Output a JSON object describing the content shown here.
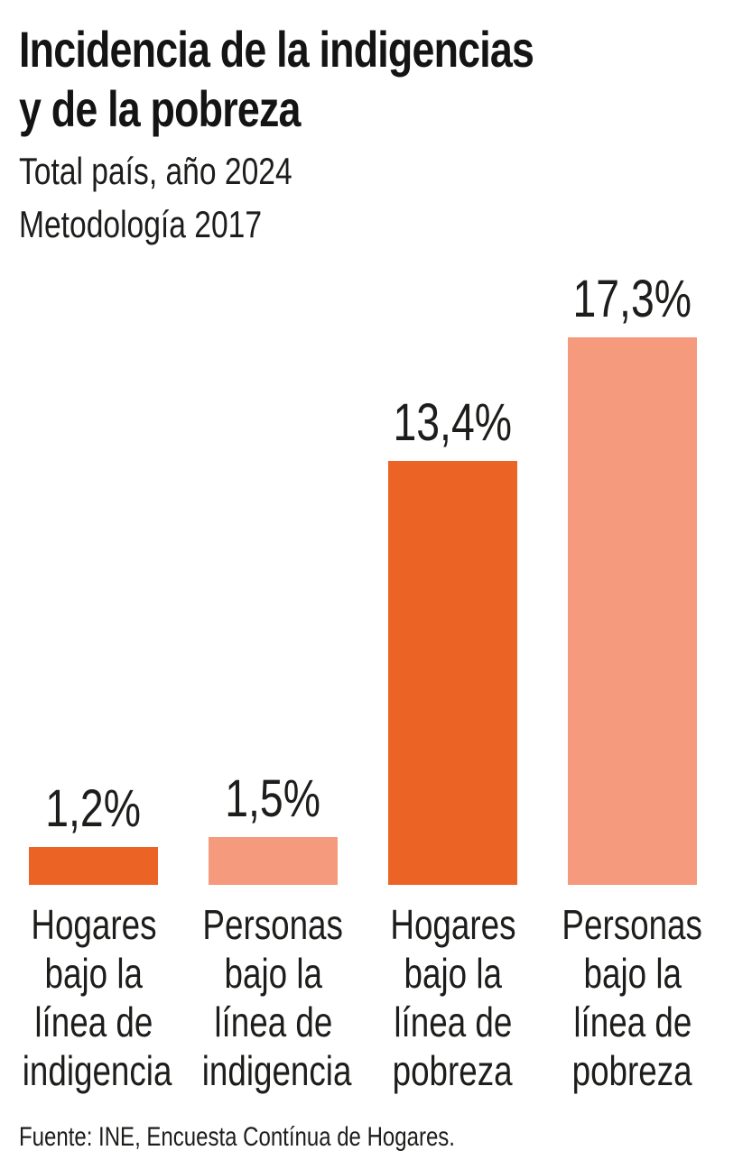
{
  "header": {
    "title_line1": "Incidencia de la indigencias",
    "title_line2": "y de la pobreza",
    "subtitle_line1": "Total país, año 2024",
    "subtitle_line2": "Metodología 2017"
  },
  "chart_data": {
    "type": "bar",
    "title": "Incidencia de la indigencias y de la pobreza",
    "subtitle": [
      "Total país, año 2024",
      "Metodología 2017"
    ],
    "unit": "%",
    "ylim": [
      0,
      18
    ],
    "grid": false,
    "legend": null,
    "categories": [
      "Hogares bajo la línea de indigencia",
      "Personas bajo la línea de indigencia",
      "Hogares bajo la línea de pobreza",
      "Personas bajo la línea de pobreza"
    ],
    "values": [
      1.2,
      1.5,
      13.4,
      17.3
    ],
    "bars": [
      {
        "category_lines": [
          "Hogares",
          "bajo la",
          "línea de",
          "indigencia"
        ],
        "value": 1.2,
        "value_label": "1,2%",
        "color": "#EC6425"
      },
      {
        "category_lines": [
          "Personas",
          "bajo la",
          "línea de",
          "indigencia"
        ],
        "value": 1.5,
        "value_label": "1,5%",
        "color": "#F59A7C"
      },
      {
        "category_lines": [
          "Hogares",
          "bajo la",
          "línea de",
          "pobreza"
        ],
        "value": 13.4,
        "value_label": "13,4%",
        "color": "#EC6425"
      },
      {
        "category_lines": [
          "Personas",
          "bajo la",
          "línea de",
          "pobreza"
        ],
        "value": 17.3,
        "value_label": "17,3%",
        "color": "#F59A7C"
      }
    ],
    "colors": {
      "bar_dark_orange": "#EC6425",
      "bar_light_salmon": "#F59A7C",
      "text": "#1D1D1B"
    }
  },
  "footer": {
    "source": "Fuente: INE, Encuesta Contínua de Hogares."
  }
}
